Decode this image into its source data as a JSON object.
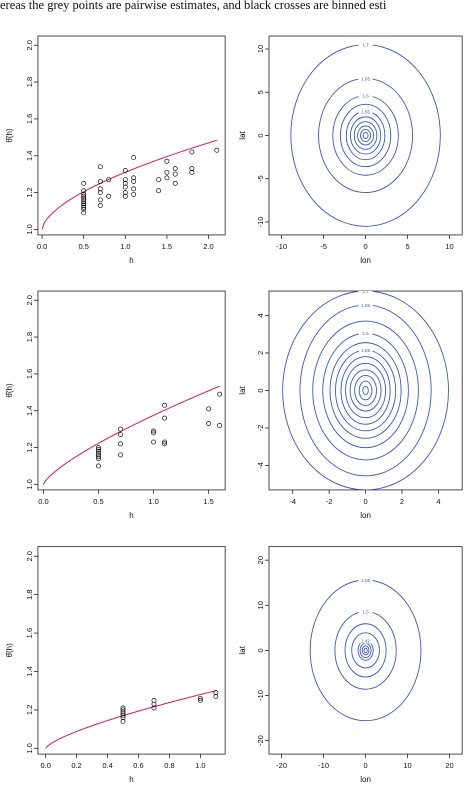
{
  "caption": "ereas the grey points are pairwise estimates, and black crosses are binned esti",
  "colors": {
    "curve": "#d81b60",
    "contour": "#3b57c8",
    "axis": "#222222",
    "point": "#111111"
  },
  "chart_data": [
    {
      "type": "scatter",
      "xlabel": "h",
      "ylabel": "θ̂(h)",
      "xlim": [
        -0.05,
        2.2
      ],
      "ylim": [
        0.97,
        2.05
      ],
      "xticks": [
        "0.0",
        "0.5",
        "1.0",
        "1.5",
        "2.0"
      ],
      "yticks": [
        "1.0",
        "1.2",
        "1.4",
        "1.6",
        "1.8",
        "2.0"
      ],
      "points": [
        [
          0.5,
          1.09
        ],
        [
          0.5,
          1.11
        ],
        [
          0.5,
          1.12
        ],
        [
          0.5,
          1.13
        ],
        [
          0.5,
          1.14
        ],
        [
          0.5,
          1.15
        ],
        [
          0.5,
          1.16
        ],
        [
          0.5,
          1.17
        ],
        [
          0.5,
          1.18
        ],
        [
          0.5,
          1.19
        ],
        [
          0.5,
          1.21
        ],
        [
          0.5,
          1.25
        ],
        [
          0.7,
          1.13
        ],
        [
          0.7,
          1.16
        ],
        [
          0.7,
          1.2
        ],
        [
          0.7,
          1.22
        ],
        [
          0.7,
          1.26
        ],
        [
          0.7,
          1.34
        ],
        [
          0.8,
          1.18
        ],
        [
          0.8,
          1.27
        ],
        [
          1.0,
          1.18
        ],
        [
          1.0,
          1.2
        ],
        [
          1.0,
          1.23
        ],
        [
          1.0,
          1.25
        ],
        [
          1.0,
          1.27
        ],
        [
          1.0,
          1.32
        ],
        [
          1.1,
          1.19
        ],
        [
          1.1,
          1.22
        ],
        [
          1.1,
          1.26
        ],
        [
          1.1,
          1.28
        ],
        [
          1.1,
          1.39
        ],
        [
          1.4,
          1.21
        ],
        [
          1.4,
          1.27
        ],
        [
          1.5,
          1.28
        ],
        [
          1.5,
          1.31
        ],
        [
          1.5,
          1.37
        ],
        [
          1.6,
          1.25
        ],
        [
          1.6,
          1.3
        ],
        [
          1.6,
          1.33
        ],
        [
          1.8,
          1.31
        ],
        [
          1.8,
          1.33
        ],
        [
          1.8,
          1.42
        ],
        [
          2.1,
          1.43
        ]
      ],
      "curve": {
        "name": "",
        "x0": 0.0,
        "x1": 2.1,
        "intercept": 1.0,
        "coef": 0.31,
        "power": 0.6
      }
    },
    {
      "type": "contour",
      "xlabel": "lon",
      "ylabel": "lat",
      "xlim": [
        -11.5,
        11.5
      ],
      "ylim": [
        -11.5,
        11.5
      ],
      "xticks": [
        -10,
        -5,
        0,
        5,
        10
      ],
      "yticks": [
        -10,
        -5,
        0,
        5,
        10
      ],
      "levels": [
        {
          "a": 0.3,
          "b": 0.35,
          "label": ""
        },
        {
          "a": 0.6,
          "b": 0.7,
          "label": ""
        },
        {
          "a": 0.95,
          "b": 1.1,
          "label": ""
        },
        {
          "a": 1.35,
          "b": 1.6,
          "label": ""
        },
        {
          "a": 1.8,
          "b": 2.15,
          "label": ""
        },
        {
          "a": 2.3,
          "b": 2.8,
          "label": "1.55"
        },
        {
          "a": 3.0,
          "b": 3.6,
          "label": ""
        },
        {
          "a": 3.9,
          "b": 4.6,
          "label": "1.6"
        },
        {
          "a": 5.6,
          "b": 6.6,
          "label": "1.65"
        },
        {
          "a": 8.9,
          "b": 10.5,
          "label": "1.7"
        }
      ]
    },
    {
      "type": "scatter",
      "xlabel": "h",
      "ylabel": "θ̂(h)",
      "xlim": [
        -0.05,
        1.65
      ],
      "ylim": [
        0.97,
        2.05
      ],
      "xticks": [
        "0.0",
        "0.5",
        "1.0",
        "1.5"
      ],
      "yticks": [
        "1.0",
        "1.2",
        "1.4",
        "1.6",
        "1.8",
        "2.0"
      ],
      "points": [
        [
          0.5,
          1.1
        ],
        [
          0.5,
          1.14
        ],
        [
          0.5,
          1.15
        ],
        [
          0.5,
          1.16
        ],
        [
          0.5,
          1.17
        ],
        [
          0.5,
          1.18
        ],
        [
          0.5,
          1.19
        ],
        [
          0.5,
          1.2
        ],
        [
          0.7,
          1.16
        ],
        [
          0.7,
          1.22
        ],
        [
          0.7,
          1.27
        ],
        [
          0.7,
          1.3
        ],
        [
          1.0,
          1.23
        ],
        [
          1.0,
          1.28
        ],
        [
          1.0,
          1.29
        ],
        [
          1.1,
          1.22
        ],
        [
          1.1,
          1.23
        ],
        [
          1.1,
          1.36
        ],
        [
          1.1,
          1.43
        ],
        [
          1.5,
          1.33
        ],
        [
          1.5,
          1.41
        ],
        [
          1.6,
          1.32
        ],
        [
          1.6,
          1.49
        ]
      ],
      "curve": {
        "name": "",
        "x0": 0.0,
        "x1": 1.6,
        "intercept": 1.0,
        "coef": 0.375,
        "power": 0.75
      }
    },
    {
      "type": "contour",
      "xlabel": "lon",
      "ylabel": "lat",
      "xlim": [
        -5.3,
        5.3
      ],
      "ylim": [
        -5.3,
        5.3
      ],
      "xticks": [
        -4,
        -2,
        0,
        2,
        4
      ],
      "yticks": [
        -4,
        -2,
        0,
        2,
        4
      ],
      "levels": [
        {
          "a": 0.15,
          "b": 0.22,
          "label": ""
        },
        {
          "a": 0.35,
          "b": 0.5,
          "label": ""
        },
        {
          "a": 0.6,
          "b": 0.8,
          "label": ""
        },
        {
          "a": 0.85,
          "b": 1.1,
          "label": ""
        },
        {
          "a": 1.1,
          "b": 1.45,
          "label": ""
        },
        {
          "a": 1.35,
          "b": 1.8,
          "label": ""
        },
        {
          "a": 1.65,
          "b": 2.15,
          "label": "1.55"
        },
        {
          "a": 1.95,
          "b": 2.55,
          "label": ""
        },
        {
          "a": 2.35,
          "b": 3.05,
          "label": "1.6"
        },
        {
          "a": 2.9,
          "b": 3.7,
          "label": ""
        },
        {
          "a": 3.6,
          "b": 4.55,
          "label": "1.65"
        },
        {
          "a": 4.55,
          "b": 5.3,
          "label": "1.7"
        }
      ]
    },
    {
      "type": "scatter",
      "xlabel": "h",
      "ylabel": "θ̂(h)",
      "xlim": [
        -0.05,
        1.16
      ],
      "ylim": [
        0.97,
        2.05
      ],
      "xticks": [
        "0.0",
        "0.2",
        "0.4",
        "0.6",
        "0.8",
        "1.0"
      ],
      "yticks": [
        "1.0",
        "1.2",
        "1.4",
        "1.6",
        "1.8",
        "2.0"
      ],
      "points": [
        [
          0.5,
          1.14
        ],
        [
          0.5,
          1.16
        ],
        [
          0.5,
          1.17
        ],
        [
          0.5,
          1.18
        ],
        [
          0.5,
          1.19
        ],
        [
          0.5,
          1.2
        ],
        [
          0.5,
          1.21
        ],
        [
          0.7,
          1.21
        ],
        [
          0.7,
          1.23
        ],
        [
          0.7,
          1.25
        ],
        [
          1.0,
          1.25
        ],
        [
          1.0,
          1.26
        ],
        [
          1.1,
          1.27
        ],
        [
          1.1,
          1.29
        ]
      ],
      "curve": {
        "name": "",
        "x0": 0.0,
        "x1": 1.1,
        "intercept": 1.0,
        "coef": 0.28,
        "power": 0.72
      }
    },
    {
      "type": "contour",
      "xlabel": "lon",
      "ylabel": "lat",
      "xlim": [
        -23,
        23
      ],
      "ylim": [
        -23,
        23
      ],
      "xticks": [
        -20,
        -10,
        0,
        10,
        20
      ],
      "yticks": [
        -20,
        -10,
        0,
        10,
        20
      ],
      "levels": [
        {
          "a": 0.4,
          "b": 0.5,
          "label": ""
        },
        {
          "a": 0.8,
          "b": 1.0,
          "label": ""
        },
        {
          "a": 1.3,
          "b": 1.6,
          "label": ""
        },
        {
          "a": 1.8,
          "b": 2.2,
          "label": "1.42"
        },
        {
          "a": 3.3,
          "b": 3.9,
          "label": ""
        },
        {
          "a": 4.9,
          "b": 5.9,
          "label": ""
        },
        {
          "a": 7.3,
          "b": 8.6,
          "label": "1.5"
        },
        {
          "a": 13.2,
          "b": 15.6,
          "label": "1.56"
        }
      ]
    }
  ]
}
